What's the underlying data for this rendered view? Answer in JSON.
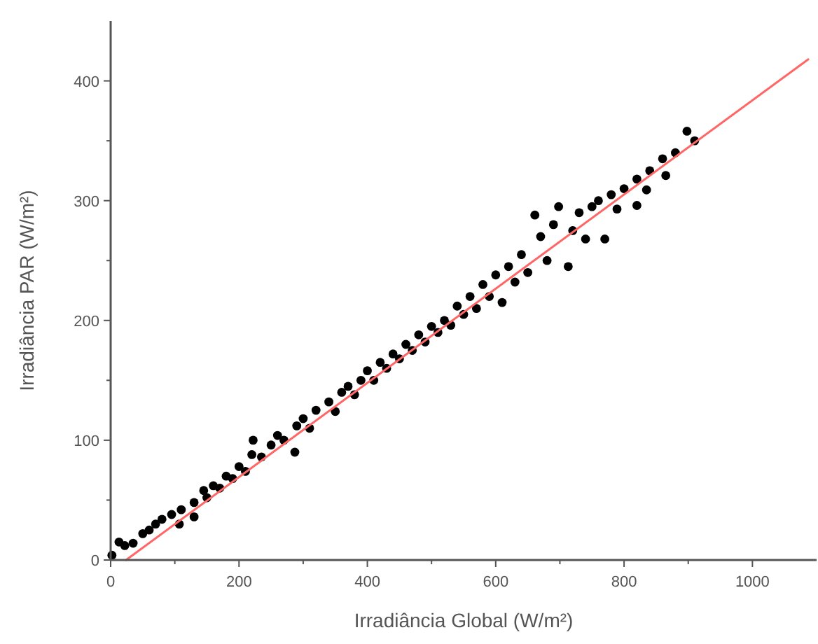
{
  "chart_data": {
    "type": "scatter",
    "xlabel": "Irradiância Global (W/m²)",
    "ylabel": "Irradiância PAR (W/m²)",
    "xlim": [
      0,
      1100
    ],
    "ylim": [
      0,
      450
    ],
    "xticks": [
      0,
      {
        "value": 100,
        "label": null
      },
      200,
      {
        "value": 300,
        "label": null
      },
      400,
      {
        "value": 500,
        "label": null
      },
      600,
      {
        "value": 700,
        "label": null
      },
      800,
      {
        "value": 900,
        "label": null
      },
      1000
    ],
    "yticks": [
      0,
      {
        "value": 50,
        "label": null
      },
      100,
      {
        "value": 150,
        "label": null
      },
      200,
      {
        "value": 250,
        "label": null
      },
      300,
      {
        "value": 350,
        "label": null
      },
      400
    ],
    "grid": false,
    "series": [
      {
        "color": "#000000",
        "marker": "circle",
        "x": [
          2,
          13,
          22,
          35,
          50,
          60,
          70,
          80,
          95,
          107,
          110,
          130,
          130,
          145,
          150,
          160,
          170,
          180,
          190,
          200,
          210,
          220,
          222,
          235,
          250,
          260,
          270,
          287,
          290,
          300,
          310,
          320,
          340,
          350,
          360,
          370,
          380,
          390,
          400,
          410,
          420,
          430,
          440,
          450,
          460,
          470,
          480,
          490,
          500,
          510,
          520,
          530,
          540,
          550,
          560,
          570,
          580,
          590,
          600,
          610,
          620,
          630,
          640,
          650,
          661,
          670,
          680,
          690,
          698,
          713,
          720,
          730,
          740,
          750,
          770,
          760,
          780,
          789,
          800,
          820,
          820,
          835,
          840,
          860,
          865,
          880,
          898,
          910
        ],
        "values": [
          4,
          15,
          12,
          14,
          22,
          25,
          30,
          34,
          38,
          30,
          42,
          36,
          48,
          58,
          52,
          62,
          60,
          70,
          68,
          78,
          74,
          88,
          100,
          86,
          96,
          104,
          100,
          90,
          112,
          118,
          110,
          125,
          132,
          124,
          140,
          145,
          138,
          150,
          158,
          150,
          165,
          160,
          172,
          168,
          180,
          175,
          188,
          182,
          195,
          190,
          200,
          196,
          212,
          205,
          220,
          210,
          230,
          220,
          238,
          215,
          245,
          232,
          255,
          240,
          288,
          270,
          250,
          280,
          295,
          245,
          275,
          290,
          268,
          295,
          268,
          300,
          305,
          293,
          310,
          296,
          318,
          309,
          325,
          335,
          321,
          340,
          358,
          350
        ]
      },
      {
        "type": "line",
        "color": "#ff6666",
        "line_style": "solid",
        "x": [
          24,
          1087
        ],
        "values": [
          0,
          418
        ]
      }
    ]
  }
}
